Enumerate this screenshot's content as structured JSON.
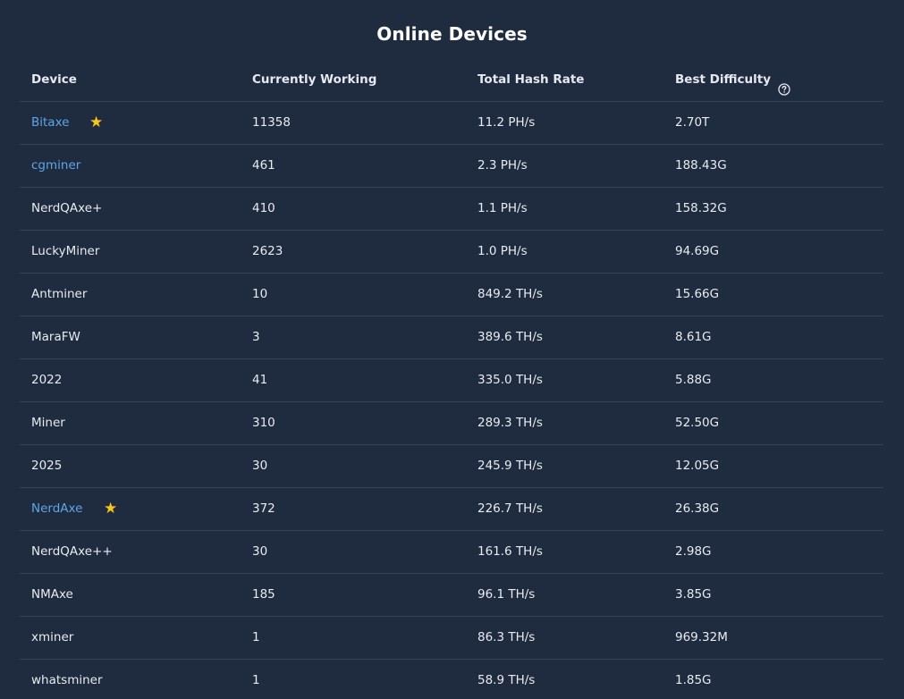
{
  "title": "Online Devices",
  "columns": {
    "device": "Device",
    "working": "Currently Working",
    "hashrate": "Total Hash Rate",
    "difficulty": "Best Difficulty"
  },
  "help_icon": "question-circle-icon",
  "star_icon": "star-icon",
  "colors": {
    "background": "#1f2b3e",
    "link": "#5ea6e8",
    "star": "#f7c61a",
    "divider": "#354359"
  },
  "rows": [
    {
      "device": "Bitaxe",
      "working": "11358",
      "hashrate": "11.2 PH/s",
      "difficulty": "2.70T",
      "link": true,
      "star": true
    },
    {
      "device": "cgminer",
      "working": "461",
      "hashrate": "2.3 PH/s",
      "difficulty": "188.43G",
      "link": true,
      "star": false
    },
    {
      "device": "NerdQAxe+",
      "working": "410",
      "hashrate": "1.1 PH/s",
      "difficulty": "158.32G",
      "link": false,
      "star": false
    },
    {
      "device": "LuckyMiner",
      "working": "2623",
      "hashrate": "1.0 PH/s",
      "difficulty": "94.69G",
      "link": false,
      "star": false
    },
    {
      "device": "Antminer",
      "working": "10",
      "hashrate": "849.2 TH/s",
      "difficulty": "15.66G",
      "link": false,
      "star": false
    },
    {
      "device": "MaraFW",
      "working": "3",
      "hashrate": "389.6 TH/s",
      "difficulty": "8.61G",
      "link": false,
      "star": false
    },
    {
      "device": "2022",
      "working": "41",
      "hashrate": "335.0 TH/s",
      "difficulty": "5.88G",
      "link": false,
      "star": false
    },
    {
      "device": "Miner",
      "working": "310",
      "hashrate": "289.3 TH/s",
      "difficulty": "52.50G",
      "link": false,
      "star": false
    },
    {
      "device": "2025",
      "working": "30",
      "hashrate": "245.9 TH/s",
      "difficulty": "12.05G",
      "link": false,
      "star": false
    },
    {
      "device": "NerdAxe",
      "working": "372",
      "hashrate": "226.7 TH/s",
      "difficulty": "26.38G",
      "link": true,
      "star": true
    },
    {
      "device": "NerdQAxe++",
      "working": "30",
      "hashrate": "161.6 TH/s",
      "difficulty": "2.98G",
      "link": false,
      "star": false
    },
    {
      "device": "NMAxe",
      "working": "185",
      "hashrate": "96.1 TH/s",
      "difficulty": "3.85G",
      "link": false,
      "star": false
    },
    {
      "device": "xminer",
      "working": "1",
      "hashrate": "86.3 TH/s",
      "difficulty": "969.32M",
      "link": false,
      "star": false
    },
    {
      "device": "whatsminer",
      "working": "1",
      "hashrate": "58.9 TH/s",
      "difficulty": "1.85G",
      "link": false,
      "star": false
    }
  ]
}
